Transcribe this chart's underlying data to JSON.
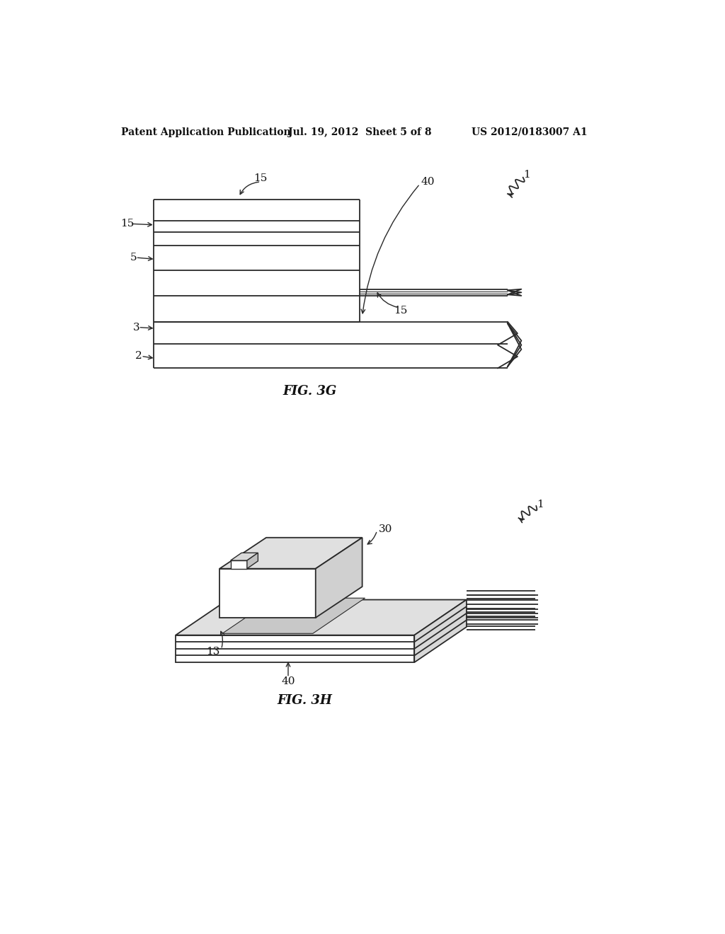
{
  "background_color": "#ffffff",
  "header_left": "Patent Application Publication",
  "header_center": "Jul. 19, 2012  Sheet 5 of 8",
  "header_right": "US 2012/0183007 A1",
  "fig3g_label": "FIG. 3G",
  "fig3h_label": "FIG. 3H",
  "line_color": "#2a2a2a",
  "gray_fill": "#c8c8c8",
  "light_gray": "#e0e0e0"
}
